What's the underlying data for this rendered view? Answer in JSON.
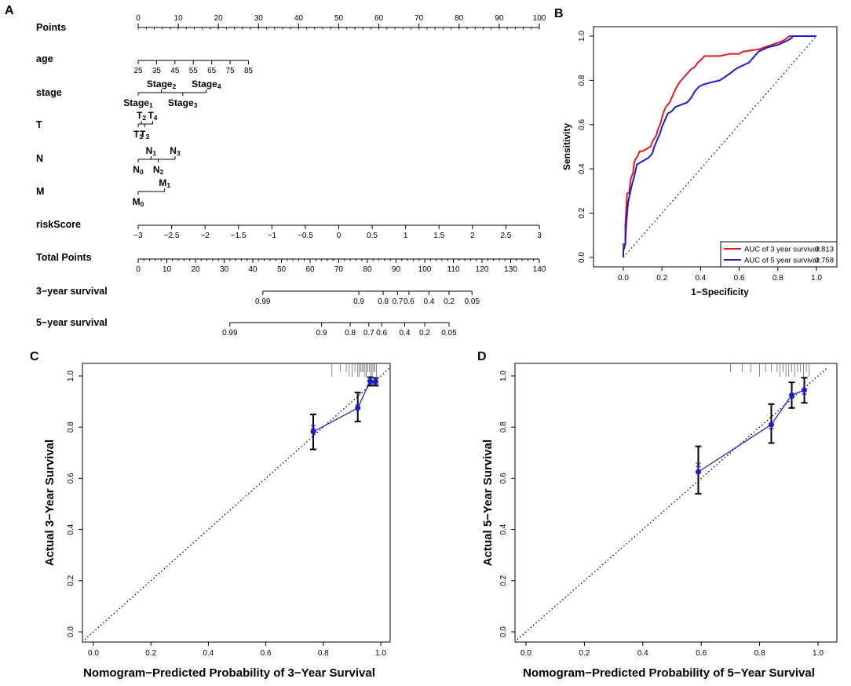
{
  "panels": {
    "a": "A",
    "b": "B",
    "c": "C",
    "d": "D"
  },
  "colors": {
    "red": "#e41a1c",
    "blue": "#1a1ad8",
    "black": "#000000"
  },
  "chart_data": [
    {
      "type": "nomogram",
      "panel": "A",
      "rows": [
        {
          "label": "Points",
          "kind": "axis",
          "start": 0,
          "end": 100,
          "ticks": [
            "0",
            "10",
            "20",
            "30",
            "40",
            "50",
            "60",
            "70",
            "80",
            "90",
            "100"
          ],
          "minor_step": 2
        },
        {
          "label": "age",
          "kind": "axis",
          "start": 25,
          "end": 85,
          "ticks": [
            "25",
            "35",
            "45",
            "55",
            "65",
            "75",
            "85"
          ],
          "range_points": [
            0,
            27.5
          ]
        },
        {
          "label": "stage",
          "kind": "levels",
          "range_points": [
            0,
            17
          ],
          "levels": [
            {
              "name": "Stage",
              "sub": "1",
              "points": 0,
              "side": "below"
            },
            {
              "name": "Stage",
              "sub": "2",
              "points": 5.8,
              "side": "above"
            },
            {
              "name": "Stage",
              "sub": "3",
              "points": 11.1,
              "side": "below"
            },
            {
              "name": "Stage",
              "sub": "4",
              "points": 17,
              "side": "above"
            }
          ]
        },
        {
          "label": "T",
          "kind": "levels",
          "range_points": [
            0,
            3.6
          ],
          "levels": [
            {
              "name": "T",
              "sub": "1",
              "points": 0,
              "side": "below"
            },
            {
              "name": "T",
              "sub": "2",
              "points": 0.8,
              "side": "above"
            },
            {
              "name": "T",
              "sub": "3",
              "points": 1.6,
              "side": "below"
            },
            {
              "name": "T",
              "sub": "4",
              "points": 3.6,
              "side": "above"
            }
          ]
        },
        {
          "label": "N",
          "kind": "levels",
          "range_points": [
            0,
            9.2
          ],
          "levels": [
            {
              "name": "N",
              "sub": "0",
              "points": 0,
              "side": "below"
            },
            {
              "name": "N",
              "sub": "1",
              "points": 3.2,
              "side": "above"
            },
            {
              "name": "N",
              "sub": "2",
              "points": 5,
              "side": "below"
            },
            {
              "name": "N",
              "sub": "3",
              "points": 9.2,
              "side": "above"
            }
          ]
        },
        {
          "label": "M",
          "kind": "levels",
          "range_points": [
            0,
            6.6
          ],
          "levels": [
            {
              "name": "M",
              "sub": "0",
              "points": 0,
              "side": "below"
            },
            {
              "name": "M",
              "sub": "1",
              "points": 6.6,
              "side": "above"
            }
          ]
        },
        {
          "label": "riskScore",
          "kind": "axis",
          "start": -3,
          "end": 3,
          "ticks": [
            "−3",
            "−2.5",
            "−2",
            "−1.5",
            "−1",
            "−0.5",
            "0",
            "0.5",
            "1",
            "1.5",
            "2",
            "2.5",
            "3"
          ]
        },
        {
          "label": "Total Points",
          "kind": "axis",
          "start": 0,
          "end": 140,
          "ticks": [
            "0",
            "10",
            "20",
            "30",
            "40",
            "50",
            "60",
            "70",
            "80",
            "90",
            "100",
            "110",
            "120",
            "130",
            "140"
          ],
          "minor_step": 2
        },
        {
          "label": "3−year survival",
          "kind": "prob",
          "ticks": [
            {
              "label": "0.99",
              "total": 43.5
            },
            {
              "label": "0.9",
              "total": 77
            },
            {
              "label": "0.8",
              "total": 85.5
            },
            {
              "label": "0.7",
              "total": 90.5
            },
            {
              "label": "0.6",
              "total": 94.5
            },
            {
              "label": "0.4",
              "total": 101.5
            },
            {
              "label": "0.2",
              "total": 108.5
            },
            {
              "label": "0.05",
              "total": 116.5
            }
          ]
        },
        {
          "label": "5−year survival",
          "kind": "prob",
          "ticks": [
            {
              "label": "0.99",
              "total": 32
            },
            {
              "label": "0.9",
              "total": 64
            },
            {
              "label": "0.8",
              "total": 74
            },
            {
              "label": "0.7",
              "total": 80.5
            },
            {
              "label": "0.6",
              "total": 85
            },
            {
              "label": "0.4",
              "total": 93
            },
            {
              "label": "0.2",
              "total": 100
            },
            {
              "label": "0.05",
              "total": 108.5
            }
          ]
        }
      ]
    },
    {
      "type": "line",
      "panel": "B",
      "title": "",
      "xlabel": "1−Specificity",
      "ylabel": "Sensitivity",
      "xlim": [
        0,
        1
      ],
      "ylim": [
        0,
        1
      ],
      "xticks": [
        "0.0",
        "0.2",
        "0.4",
        "0.6",
        "0.8",
        "1.0"
      ],
      "yticks": [
        "0.0",
        "0.2",
        "0.4",
        "0.6",
        "0.8",
        "1.0"
      ],
      "reference_line": "diagonal",
      "legend": {
        "position": "bottom-right",
        "entries": [
          {
            "label": "AUC of 3 year survival:",
            "value": "0.813",
            "color": "red"
          },
          {
            "label": "AUC of 5 year survival:",
            "value": "0.758",
            "color": "blue"
          }
        ]
      },
      "series": [
        {
          "name": "AUC of 3 year survival",
          "color": "red",
          "points": [
            [
              0,
              0
            ],
            [
              0,
              0.06
            ],
            [
              0.01,
              0.06
            ],
            [
              0.01,
              0.15
            ],
            [
              0.015,
              0.22
            ],
            [
              0.02,
              0.29
            ],
            [
              0.03,
              0.29
            ],
            [
              0.035,
              0.33
            ],
            [
              0.04,
              0.36
            ],
            [
              0.05,
              0.38
            ],
            [
              0.055,
              0.42
            ],
            [
              0.06,
              0.44
            ],
            [
              0.075,
              0.46
            ],
            [
              0.085,
              0.48
            ],
            [
              0.1,
              0.48
            ],
            [
              0.12,
              0.49
            ],
            [
              0.14,
              0.5
            ],
            [
              0.155,
              0.53
            ],
            [
              0.17,
              0.55
            ],
            [
              0.18,
              0.58
            ],
            [
              0.19,
              0.6
            ],
            [
              0.2,
              0.63
            ],
            [
              0.21,
              0.66
            ],
            [
              0.22,
              0.68
            ],
            [
              0.24,
              0.7
            ],
            [
              0.255,
              0.73
            ],
            [
              0.27,
              0.76
            ],
            [
              0.29,
              0.79
            ],
            [
              0.31,
              0.81
            ],
            [
              0.33,
              0.83
            ],
            [
              0.35,
              0.85
            ],
            [
              0.37,
              0.86
            ],
            [
              0.385,
              0.88
            ],
            [
              0.4,
              0.89
            ],
            [
              0.42,
              0.91
            ],
            [
              0.5,
              0.91
            ],
            [
              0.55,
              0.92
            ],
            [
              0.6,
              0.92
            ],
            [
              0.62,
              0.93
            ],
            [
              0.7,
              0.94
            ],
            [
              0.8,
              0.97
            ],
            [
              0.83,
              0.98
            ],
            [
              0.86,
              1
            ],
            [
              1,
              1
            ]
          ]
        },
        {
          "name": "AUC of 5 year survival",
          "color": "blue",
          "points": [
            [
              0,
              0
            ],
            [
              0,
              0.03
            ],
            [
              0.01,
              0.06
            ],
            [
              0.015,
              0.15
            ],
            [
              0.02,
              0.2
            ],
            [
              0.025,
              0.25
            ],
            [
              0.035,
              0.29
            ],
            [
              0.045,
              0.33
            ],
            [
              0.055,
              0.36
            ],
            [
              0.06,
              0.38
            ],
            [
              0.07,
              0.42
            ],
            [
              0.09,
              0.43
            ],
            [
              0.11,
              0.44
            ],
            [
              0.13,
              0.45
            ],
            [
              0.15,
              0.47
            ],
            [
              0.16,
              0.5
            ],
            [
              0.175,
              0.53
            ],
            [
              0.19,
              0.56
            ],
            [
              0.2,
              0.59
            ],
            [
              0.215,
              0.62
            ],
            [
              0.23,
              0.65
            ],
            [
              0.25,
              0.66
            ],
            [
              0.27,
              0.68
            ],
            [
              0.3,
              0.69
            ],
            [
              0.33,
              0.7
            ],
            [
              0.35,
              0.72
            ],
            [
              0.37,
              0.75
            ],
            [
              0.39,
              0.77
            ],
            [
              0.41,
              0.78
            ],
            [
              0.45,
              0.79
            ],
            [
              0.5,
              0.8
            ],
            [
              0.55,
              0.83
            ],
            [
              0.58,
              0.85
            ],
            [
              0.6,
              0.86
            ],
            [
              0.65,
              0.88
            ],
            [
              0.68,
              0.91
            ],
            [
              0.7,
              0.93
            ],
            [
              0.75,
              0.95
            ],
            [
              0.8,
              0.96
            ],
            [
              0.85,
              0.98
            ],
            [
              0.87,
              0.99
            ],
            [
              0.88,
              1
            ],
            [
              1,
              1
            ]
          ]
        }
      ]
    },
    {
      "type": "scatter",
      "panel": "C",
      "xlabel": "Nomogram−Predicted Probability of 3−Year Survival",
      "ylabel": "Actual 3−Year Survival",
      "xlim": [
        -0.03,
        1.03
      ],
      "ylim": [
        -0.03,
        1.03
      ],
      "xticks": [
        "0.0",
        "0.2",
        "0.4",
        "0.6",
        "0.8",
        "1.0"
      ],
      "yticks": [
        "0.0",
        "0.2",
        "0.4",
        "0.6",
        "0.8",
        "1.0"
      ],
      "reference_line": "diagonal-dotted",
      "observed": [
        {
          "x": 0.765,
          "y": 0.782,
          "lo": 0.713,
          "hi": 0.85
        },
        {
          "x": 0.92,
          "y": 0.875,
          "lo": 0.822,
          "hi": 0.935
        },
        {
          "x": 0.963,
          "y": 0.98,
          "lo": 0.962,
          "hi": 0.995
        },
        {
          "x": 0.982,
          "y": 0.978,
          "lo": 0.962,
          "hi": 0.992
        }
      ],
      "bias_corrected": [
        {
          "x": 0.765,
          "y": 0.8
        },
        {
          "x": 0.92,
          "y": 0.88
        },
        {
          "x": 0.963,
          "y": 0.975
        },
        {
          "x": 0.982,
          "y": 0.975
        }
      ],
      "rug": [
        0.83,
        0.86,
        0.88,
        0.89,
        0.9,
        0.91,
        0.92,
        0.925,
        0.93,
        0.935,
        0.94,
        0.945,
        0.95,
        0.955,
        0.96,
        0.965,
        0.97,
        0.975,
        0.98,
        0.985
      ]
    },
    {
      "type": "scatter",
      "panel": "D",
      "xlabel": "Nomogram−Predicted Probability of 5−Year Survival",
      "ylabel": "Actual 5−Year Survival",
      "xlim": [
        -0.03,
        1.03
      ],
      "ylim": [
        -0.03,
        1.03
      ],
      "xticks": [
        "0.0",
        "0.2",
        "0.4",
        "0.6",
        "0.8",
        "1.0"
      ],
      "yticks": [
        "0.0",
        "0.2",
        "0.4",
        "0.6",
        "0.8",
        "1.0"
      ],
      "reference_line": "diagonal-dotted",
      "observed": [
        {
          "x": 0.59,
          "y": 0.625,
          "lo": 0.54,
          "hi": 0.725
        },
        {
          "x": 0.84,
          "y": 0.81,
          "lo": 0.738,
          "hi": 0.89
        },
        {
          "x": 0.91,
          "y": 0.925,
          "lo": 0.875,
          "hi": 0.975
        },
        {
          "x": 0.953,
          "y": 0.945,
          "lo": 0.895,
          "hi": 0.993
        }
      ],
      "bias_corrected": [
        {
          "x": 0.59,
          "y": 0.652
        },
        {
          "x": 0.84,
          "y": 0.8
        },
        {
          "x": 0.91,
          "y": 0.92
        },
        {
          "x": 0.953,
          "y": 0.935
        }
      ],
      "rug": [
        0.7,
        0.74,
        0.77,
        0.8,
        0.82,
        0.84,
        0.86,
        0.87,
        0.88,
        0.89,
        0.9,
        0.91,
        0.92,
        0.93,
        0.94,
        0.95,
        0.96,
        0.97
      ]
    }
  ]
}
